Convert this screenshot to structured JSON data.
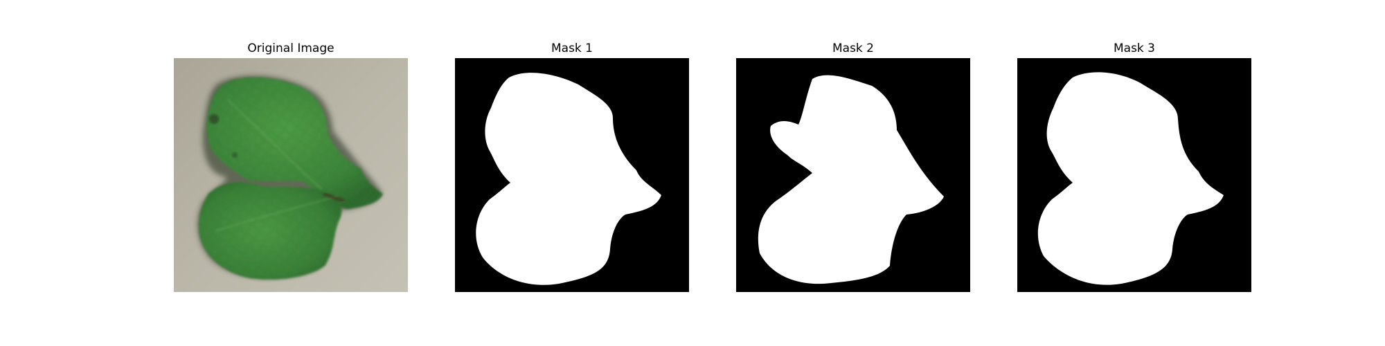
{
  "figure": {
    "panels": [
      {
        "title": "Original Image"
      },
      {
        "title": "Mask 1"
      },
      {
        "title": "Mask 2"
      },
      {
        "title": "Mask 3"
      }
    ]
  },
  "colors": {
    "background": "#ffffff",
    "mask_background": "#000000",
    "mask_foreground": "#ffffff",
    "photo_surface": "#b7b3a6",
    "leaf_green": "#3f8a3c",
    "leaf_dark": "#2a5f2a"
  }
}
